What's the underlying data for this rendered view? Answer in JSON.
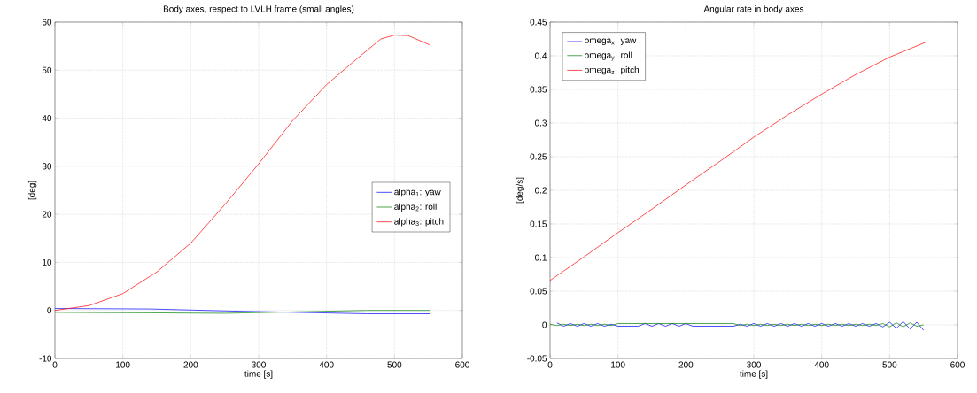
{
  "chart_data": [
    {
      "type": "line",
      "title": "Body axes, respect to LVLH frame (small angles)",
      "xlabel": "time [s]",
      "ylabel": "[deg]",
      "xlim": [
        0,
        600
      ],
      "ylim": [
        -10,
        60
      ],
      "xticks": [
        0,
        100,
        200,
        300,
        400,
        500,
        600
      ],
      "yticks": [
        -10,
        0,
        10,
        20,
        30,
        40,
        50,
        60
      ],
      "grid": true,
      "legend": "right",
      "series": [
        {
          "name": "alpha$_{1}$: yaw",
          "color": "#0000ff",
          "x": [
            0,
            140,
            250,
            460,
            553
          ],
          "values": [
            0.4,
            0.3,
            -0.1,
            -0.7,
            -0.7
          ]
        },
        {
          "name": "alpha$_{2}$: roll",
          "color": "#008000",
          "x": [
            0,
            140,
            250,
            460,
            553
          ],
          "values": [
            -0.4,
            -0.5,
            -0.6,
            0,
            0
          ]
        },
        {
          "name": "alpha$_{3}$: pitch",
          "color": "#ff0000",
          "x": [
            0,
            50,
            100,
            150,
            200,
            250,
            300,
            350,
            400,
            450,
            480,
            500,
            520,
            553
          ],
          "values": [
            0,
            1,
            3.5,
            8,
            14,
            22,
            30.5,
            39.5,
            47,
            53,
            56.5,
            57.3,
            57.2,
            55.2
          ]
        }
      ]
    },
    {
      "type": "line",
      "title": "Angular rate in body axes",
      "xlabel": "time [s]",
      "ylabel": "[deg/s]",
      "xlim": [
        0,
        600
      ],
      "ylim": [
        -0.05,
        0.45
      ],
      "xticks": [
        0,
        100,
        200,
        300,
        400,
        500,
        600
      ],
      "yticks": [
        -0.05,
        0,
        0.05,
        0.1,
        0.15,
        0.2,
        0.25,
        0.3,
        0.35,
        0.4,
        0.45
      ],
      "grid": true,
      "legend": "top left",
      "x": [
        0,
        10,
        20,
        30,
        40,
        50,
        60,
        70,
        80,
        90,
        100,
        110,
        120,
        130,
        140,
        150,
        160,
        170,
        180,
        190,
        200,
        210,
        220,
        230,
        240,
        250,
        260,
        270,
        280,
        290,
        300,
        310,
        320,
        330,
        340,
        350,
        360,
        370,
        380,
        390,
        400,
        410,
        420,
        430,
        440,
        450,
        460,
        470,
        480,
        490,
        500,
        510,
        520,
        530,
        540,
        550
      ],
      "series": [
        {
          "name": "omega$_{x}$: yaw",
          "color": "#0000ff",
          "values": [
            null,
            0.003,
            -0.002,
            0.002,
            -0.002,
            0.002,
            -0.002,
            0.002,
            -0.002,
            0.001,
            -0.002,
            -0.002,
            -0.002,
            -0.002,
            0.002,
            -0.002,
            0.002,
            -0.002,
            0.002,
            -0.002,
            0.002,
            -0.002,
            -0.002,
            -0.002,
            -0.002,
            -0.002,
            -0.002,
            -0.002,
            0.001,
            -0.002,
            0.002,
            -0.002,
            0.002,
            -0.002,
            0.002,
            -0.002,
            0.002,
            -0.002,
            0.002,
            -0.002,
            0.002,
            -0.002,
            0.002,
            -0.002,
            0.002,
            -0.002,
            0.002,
            -0.002,
            0.002,
            -0.003,
            0.004,
            -0.005,
            0.005,
            -0.006,
            0.004,
            -0.008
          ]
        },
        {
          "name": "omega$_{y}$: roll",
          "color": "#008000",
          "values": [
            0.001,
            -0.001,
            0.001,
            -0.001,
            0.001,
            -0.001,
            0.001,
            -0.001,
            0.001,
            -0.001,
            0.002,
            0.002,
            0.002,
            0.002,
            0.002,
            0.002,
            0.002,
            0.002,
            0.002,
            0.002,
            0.002,
            0.002,
            0.002,
            0.002,
            0.002,
            0.002,
            0.002,
            0.002,
            -0.001,
            0.001,
            -0.001,
            0.001,
            -0.001,
            0.001,
            -0.001,
            0.001,
            -0.001,
            0.001,
            -0.001,
            0.001,
            -0.001,
            0.001,
            -0.001,
            0.001,
            -0.001,
            0.001,
            -0.001,
            0.001,
            -0.001,
            0.002,
            -0.003,
            0.003,
            -0.003,
            0.003,
            -0.002,
            0
          ]
        },
        {
          "name": "omega$_{z}$: pitch",
          "color": "#ff0000",
          "x": [
            0,
            50,
            100,
            150,
            200,
            250,
            300,
            350,
            400,
            450,
            500,
            553
          ],
          "values": [
            0.066,
            0.101,
            0.137,
            0.172,
            0.208,
            0.243,
            0.279,
            0.312,
            0.343,
            0.372,
            0.398,
            0.42
          ]
        }
      ]
    }
  ]
}
